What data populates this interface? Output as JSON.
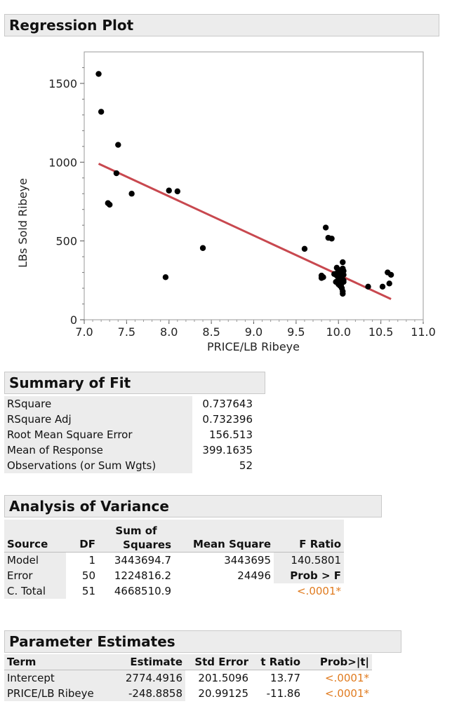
{
  "regression": {
    "title": "Regression Plot"
  },
  "colors": {
    "points": "#000000",
    "fit_line": "#c8484f",
    "significant": "#e07b1f",
    "header_bg": "#ececec"
  },
  "chart_data": {
    "type": "scatter",
    "xlabel": "PRICE/LB Ribeye",
    "ylabel": "LBs Sold Ribeye",
    "xlim": [
      7.0,
      11.0
    ],
    "ylim": [
      0,
      1700
    ],
    "x_ticks": [
      "7.0",
      "7.5",
      "8.0",
      "8.5",
      "9.0",
      "9.5",
      "10.0",
      "10.5",
      "11.0"
    ],
    "y_ticks": [
      "0",
      "500",
      "1000",
      "1500"
    ],
    "grid": false,
    "fit_line": {
      "intercept": 2774.4916,
      "slope": -248.8858,
      "x_range": [
        7.17,
        10.62
      ]
    },
    "x": [
      7.17,
      7.2,
      7.28,
      7.3,
      7.38,
      7.4,
      7.56,
      7.96,
      8.0,
      8.1,
      8.4,
      9.6,
      9.8,
      9.85,
      9.82,
      9.8,
      9.88,
      9.92,
      9.95,
      9.97,
      9.98,
      9.99,
      10.0,
      10.0,
      10.01,
      10.02,
      10.02,
      10.03,
      10.04,
      10.05,
      10.05,
      10.05,
      10.06,
      10.06,
      10.06,
      9.98,
      10.0,
      10.02,
      10.04,
      10.05,
      10.05,
      10.35,
      10.52,
      10.58,
      10.6,
      10.62,
      10.05,
      10.02,
      10.04,
      10.01,
      10.06,
      10.0
    ],
    "y": [
      1560,
      1320,
      740,
      730,
      930,
      1110,
      800,
      270,
      820,
      815,
      455,
      450,
      280,
      585,
      270,
      265,
      520,
      515,
      290,
      240,
      330,
      300,
      260,
      225,
      310,
      280,
      250,
      215,
      200,
      180,
      165,
      365,
      310,
      250,
      285,
      280,
      270,
      215,
      235,
      325,
      300,
      210,
      210,
      300,
      230,
      285,
      300,
      315,
      260,
      290,
      240,
      300
    ]
  },
  "summary_of_fit": {
    "title": "Summary of Fit",
    "rows": [
      {
        "label": "RSquare",
        "value": "0.737643"
      },
      {
        "label": "RSquare Adj",
        "value": "0.732396"
      },
      {
        "label": "Root Mean Square Error",
        "value": "156.513"
      },
      {
        "label": "Mean of Response",
        "value": "399.1635"
      },
      {
        "label": "Observations (or Sum Wgts)",
        "value": "52"
      }
    ]
  },
  "anova": {
    "title": "Analysis of Variance",
    "headers": {
      "source": "Source",
      "df": "DF",
      "ss_top": "Sum of",
      "ss_bottom": "Squares",
      "ms": "Mean Square",
      "f": "F Ratio"
    },
    "rows": [
      {
        "source": "Model",
        "df": "1",
        "ss": "3443694.7",
        "ms": "3443695",
        "f": "140.5801"
      },
      {
        "source": "Error",
        "df": "50",
        "ss": "1224816.2",
        "ms": "24496",
        "f": "Prob > F"
      },
      {
        "source": "C. Total",
        "df": "51",
        "ss": "4668510.9",
        "ms": "",
        "f": "<.0001*"
      }
    ]
  },
  "parameter_estimates": {
    "title": "Parameter Estimates",
    "headers": {
      "term": "Term",
      "estimate": "Estimate",
      "stderr": "Std Error",
      "t": "t Ratio",
      "p": "Prob>|t|"
    },
    "rows": [
      {
        "term": "Intercept",
        "estimate": "2774.4916",
        "stderr": "201.5096",
        "t": "13.77",
        "p": "<.0001*"
      },
      {
        "term": "PRICE/LB Ribeye",
        "estimate": "-248.8858",
        "stderr": "20.99125",
        "t": "-11.86",
        "p": "<.0001*"
      }
    ]
  }
}
